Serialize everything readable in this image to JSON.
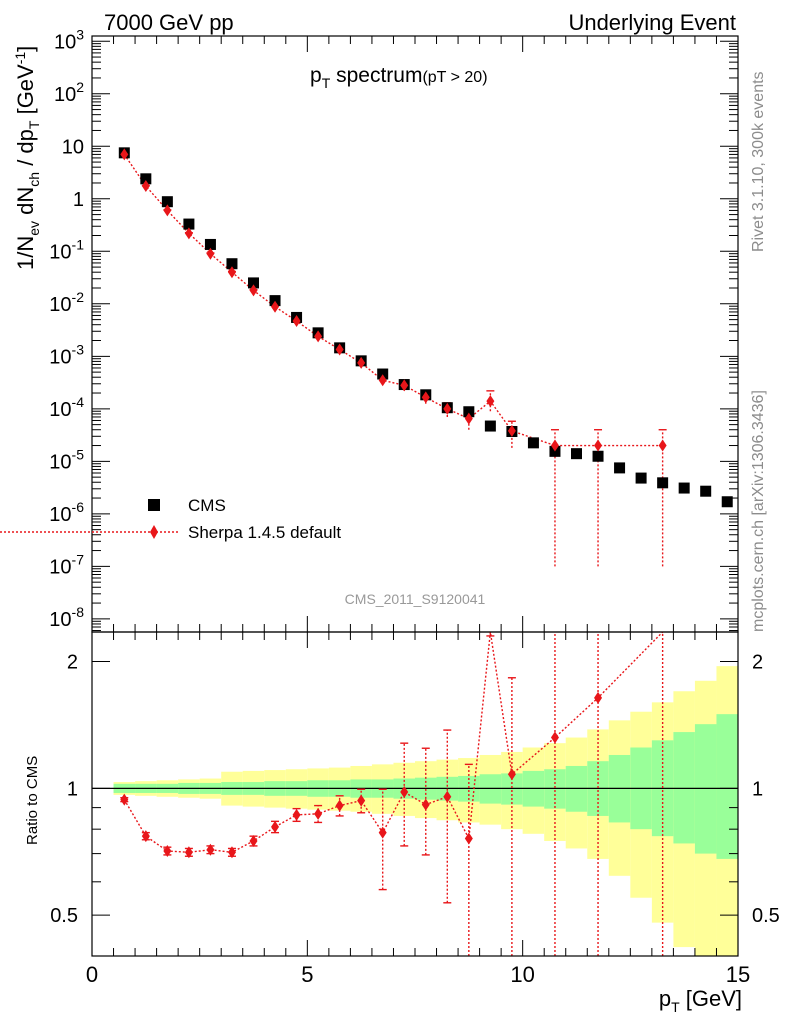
{
  "header": {
    "left": "7000 GeV pp",
    "right": "Underlying Event"
  },
  "plot_title": {
    "main": "p",
    "main_sub": "T",
    "main_rest": " spectrum",
    "cut": "(pT > 20)"
  },
  "ylabel_top": {
    "a": "1/N",
    "a_sub": "ev",
    "b": " dN",
    "b_sub": "ch",
    "c": " / dp",
    "c_sub": "T",
    "d": " [GeV",
    "d_sup": "-1",
    "e": "]"
  },
  "ylabel_bottom": "Ratio to CMS",
  "xlabel": {
    "main": "p",
    "sub": "T",
    "unit": " [GeV]"
  },
  "side_text": {
    "rivet": "Rivet 3.1.10,  300k events",
    "mcplots": "mcplots.cern.ch [arXiv:1306.3436]"
  },
  "analysis_id": "CMS_2011_S9120041",
  "legend": {
    "data": "CMS",
    "mc": "Sherpa 1.4.5 default"
  },
  "colors": {
    "data": "#000000",
    "mc": "#e8161a",
    "band_inner": "#99ff99",
    "band_outer": "#ffff99"
  },
  "chart_data": {
    "type": "scatter",
    "x_ticks": [
      "0",
      "5",
      "10",
      "15"
    ],
    "y_ticks_top": [
      {
        "base": "10",
        "exp": "-8",
        "v": -8
      },
      {
        "base": "10",
        "exp": "-7",
        "v": -7
      },
      {
        "base": "10",
        "exp": "-6",
        "v": -6
      },
      {
        "base": "10",
        "exp": "-5",
        "v": -5
      },
      {
        "base": "10",
        "exp": "-4",
        "v": -4
      },
      {
        "base": "10",
        "exp": "-3",
        "v": -3
      },
      {
        "base": "10",
        "exp": "-2",
        "v": -2
      },
      {
        "base": "10",
        "exp": "-1",
        "v": -1
      },
      {
        "base": "1",
        "exp": "",
        "v": 0
      },
      {
        "base": "10",
        "exp": "",
        "v": 1
      },
      {
        "base": "10",
        "exp": "2",
        "v": 2
      },
      {
        "base": "10",
        "exp": "3",
        "v": 3
      }
    ],
    "y_ticks_bottom": [
      "0.5",
      "1",
      "2"
    ],
    "xlim": [
      0,
      15
    ],
    "ylim_top_log10": [
      -8.25,
      3.1
    ],
    "ylim_bottom": [
      0.4,
      2.35
    ],
    "y_scale_top": "log",
    "y_scale_bottom": "log",
    "legend_position": "bottom-left",
    "series": [
      {
        "name": "CMS",
        "x": [
          0.75,
          1.25,
          1.75,
          2.25,
          2.75,
          3.25,
          3.75,
          4.25,
          4.75,
          5.25,
          5.75,
          6.25,
          6.75,
          7.25,
          7.75,
          8.25,
          8.75,
          9.25,
          9.75,
          10.25,
          10.75,
          11.25,
          11.75,
          12.25,
          12.75,
          13.25,
          13.75,
          14.25,
          14.75
        ],
        "y": [
          7.5,
          2.4,
          0.88,
          0.33,
          0.135,
          0.058,
          0.025,
          0.0115,
          0.0055,
          0.0028,
          0.00145,
          0.00082,
          0.00046,
          0.00029,
          0.000185,
          0.000105,
          8.8e-05,
          4.7e-05,
          3.7e-05,
          2.25e-05,
          1.55e-05,
          1.4e-05,
          1.25e-05,
          7.5e-06,
          4.8e-06,
          3.9e-06,
          3.1e-06,
          2.7e-06,
          1.7e-06
        ]
      },
      {
        "name": "Sherpa 1.4.5 default",
        "x": [
          0.75,
          1.25,
          1.75,
          2.25,
          2.75,
          3.25,
          3.75,
          4.25,
          4.75,
          5.25,
          5.75,
          6.25,
          6.75,
          7.25,
          7.75,
          8.25,
          8.75,
          9.25,
          9.75,
          10.75,
          11.75,
          13.25
        ],
        "y": [
          7.0,
          1.75,
          0.6,
          0.22,
          0.09,
          0.04,
          0.018,
          0.0088,
          0.0047,
          0.0024,
          0.00135,
          0.00075,
          0.00035,
          0.00028,
          0.000165,
          0.0001,
          6.5e-05,
          0.00014,
          3.8e-05,
          2e-05,
          2e-05,
          2e-05
        ],
        "y_err_low": [
          0.15,
          0.04,
          0.015,
          0.006,
          0.003,
          0.0012,
          0.0006,
          0.0004,
          0.00025,
          0.00015,
          0.0001,
          7e-05,
          5e-05,
          6e-05,
          4e-05,
          3e-05,
          2.5e-05,
          5e-05,
          2e-05,
          1.99e-05,
          1.99e-05,
          1.99e-05
        ],
        "y_err_high": [
          0.15,
          0.04,
          0.015,
          0.006,
          0.003,
          0.0012,
          0.0006,
          0.0004,
          0.00025,
          0.00015,
          0.0001,
          7e-05,
          5e-05,
          6e-05,
          4e-05,
          3e-05,
          2.5e-05,
          8e-05,
          2e-05,
          2e-05,
          2e-05,
          2e-05
        ]
      }
    ],
    "ratio": {
      "x": [
        0.75,
        1.25,
        1.75,
        2.25,
        2.75,
        3.25,
        3.75,
        4.25,
        4.75,
        5.25,
        5.75,
        6.25,
        6.75,
        7.25,
        7.75,
        8.25,
        8.75,
        9.25,
        9.75,
        10.75,
        11.75,
        13.25
      ],
      "y": [
        0.94,
        0.77,
        0.71,
        0.705,
        0.715,
        0.705,
        0.75,
        0.81,
        0.865,
        0.87,
        0.91,
        0.935,
        0.785,
        0.98,
        0.915,
        0.955,
        0.76,
        2.9,
        1.08,
        1.32,
        1.64,
        3.5
      ],
      "y_err_low": [
        0.01,
        0.015,
        0.015,
        0.015,
        0.015,
        0.015,
        0.02,
        0.025,
        0.03,
        0.04,
        0.05,
        0.06,
        0.21,
        0.25,
        0.22,
        0.42,
        0.38,
        0.6,
        0.7,
        1.3,
        1.64,
        3.49
      ],
      "y_err_high": [
        0.01,
        0.015,
        0.015,
        0.015,
        0.015,
        0.015,
        0.02,
        0.025,
        0.03,
        0.04,
        0.05,
        0.06,
        0.21,
        0.3,
        0.33,
        0.42,
        0.38,
        0.6,
        0.75,
        1.5,
        1.6,
        1.5
      ],
      "band_edges": [
        0.5,
        1.0,
        1.5,
        2.0,
        2.5,
        3.0,
        3.5,
        4.0,
        4.5,
        5.0,
        5.5,
        6.0,
        6.5,
        7.0,
        7.5,
        8.0,
        8.5,
        9.0,
        9.5,
        10.0,
        10.5,
        11.0,
        11.5,
        12.0,
        12.5,
        13.0,
        13.5,
        14.0,
        14.5,
        15.0
      ],
      "band_inner_low": [
        0.975,
        0.975,
        0.975,
        0.97,
        0.97,
        0.965,
        0.965,
        0.96,
        0.96,
        0.955,
        0.955,
        0.95,
        0.95,
        0.945,
        0.94,
        0.935,
        0.93,
        0.92,
        0.915,
        0.905,
        0.895,
        0.88,
        0.86,
        0.83,
        0.8,
        0.77,
        0.74,
        0.7,
        0.68
      ],
      "band_inner_high": [
        1.025,
        1.025,
        1.025,
        1.03,
        1.03,
        1.035,
        1.035,
        1.04,
        1.04,
        1.045,
        1.045,
        1.05,
        1.05,
        1.055,
        1.06,
        1.065,
        1.07,
        1.08,
        1.085,
        1.1,
        1.11,
        1.13,
        1.16,
        1.2,
        1.25,
        1.3,
        1.36,
        1.42,
        1.5
      ],
      "band_outer_low": [
        0.965,
        0.96,
        0.955,
        0.95,
        0.945,
        0.91,
        0.905,
        0.9,
        0.895,
        0.89,
        0.885,
        0.88,
        0.87,
        0.86,
        0.85,
        0.84,
        0.83,
        0.82,
        0.8,
        0.78,
        0.75,
        0.72,
        0.68,
        0.62,
        0.55,
        0.48,
        0.42,
        0.4,
        0.4
      ],
      "band_outer_high": [
        1.035,
        1.04,
        1.045,
        1.05,
        1.055,
        1.095,
        1.1,
        1.105,
        1.11,
        1.115,
        1.12,
        1.13,
        1.14,
        1.15,
        1.16,
        1.17,
        1.18,
        1.2,
        1.22,
        1.25,
        1.28,
        1.32,
        1.38,
        1.45,
        1.52,
        1.6,
        1.7,
        1.8,
        1.95
      ]
    }
  }
}
